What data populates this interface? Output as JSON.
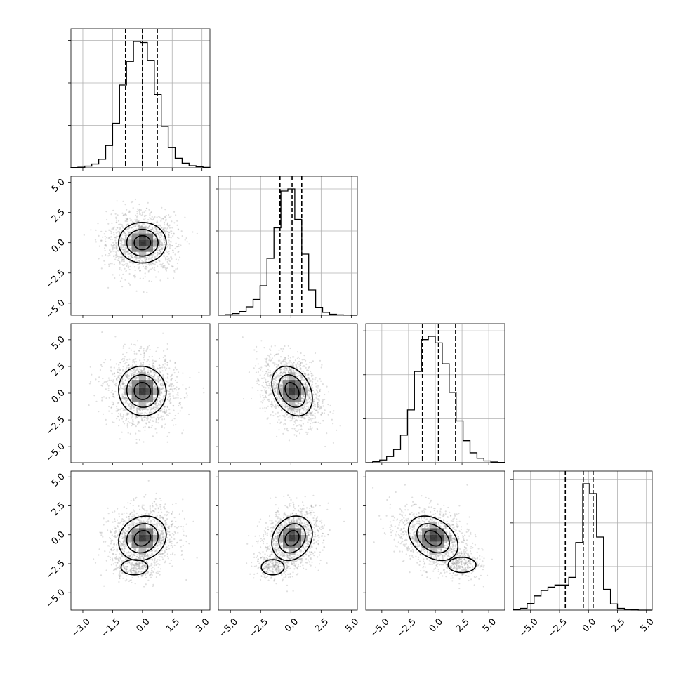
{
  "chart_data": {
    "type": "corner",
    "parameters": 4,
    "axes": [
      {
        "range": [
          -3.6,
          3.4
        ],
        "ticks": [
          -3.0,
          -1.5,
          0.0,
          1.5,
          3.0
        ],
        "tick_labels": [
          "−3.0",
          "−1.5",
          "0.0",
          "1.5",
          "3.0"
        ]
      },
      {
        "range": [
          -6.0,
          5.5
        ],
        "ticks": [
          -5.0,
          -2.5,
          0.0,
          2.5,
          5.0
        ],
        "tick_labels": [
          "−5.0",
          "−2.5",
          "0.0",
          "2.5",
          "5.0"
        ]
      },
      {
        "range": [
          -6.5,
          6.5
        ],
        "ticks": [
          -5.0,
          -2.5,
          0.0,
          2.5,
          5.0
        ],
        "tick_labels": [
          "−5.0",
          "−2.5",
          "0.0",
          "2.5",
          "5.0"
        ]
      },
      {
        "range": [
          -6.5,
          5.5
        ],
        "ticks": [
          -5.0,
          -2.5,
          0.0,
          2.5,
          5.0
        ],
        "tick_labels": [
          "−5.0",
          "−2.5",
          "0.0",
          "2.5",
          "5.0"
        ]
      }
    ],
    "histograms": [
      {
        "bins": [
          -3.6,
          -3.25,
          -2.9,
          -2.55,
          -2.2,
          -1.85,
          -1.5,
          -1.15,
          -0.8,
          -0.45,
          -0.1,
          0.25,
          0.6,
          0.95,
          1.3,
          1.65,
          2.0,
          2.35,
          2.7,
          3.05,
          3.4
        ],
        "counts": [
          1,
          3,
          8,
          18,
          40,
          105,
          210,
          390,
          500,
          595,
          590,
          505,
          345,
          195,
          95,
          45,
          22,
          10,
          5,
          2
        ],
        "quantiles": [
          -0.85,
          0.0,
          0.75
        ]
      },
      {
        "bins": [
          -6.0,
          -5.425,
          -4.85,
          -4.275,
          -3.7,
          -3.125,
          -2.55,
          -1.975,
          -1.4,
          -0.825,
          -0.25,
          0.325,
          0.9,
          1.475,
          2.05,
          2.625,
          3.2,
          3.775,
          4.35,
          4.925,
          5.5
        ],
        "counts": [
          1,
          3,
          8,
          18,
          40,
          75,
          140,
          270,
          415,
          590,
          600,
          455,
          290,
          120,
          38,
          14,
          5,
          2,
          1,
          0
        ],
        "quantiles": [
          -0.9,
          0.1,
          0.9
        ]
      },
      {
        "bins": [
          -6.5,
          -5.85,
          -5.2,
          -4.55,
          -3.9,
          -3.25,
          -2.6,
          -1.95,
          -1.3,
          -0.65,
          0.0,
          0.65,
          1.3,
          1.95,
          2.6,
          3.25,
          3.9,
          4.55,
          5.2,
          5.85,
          6.5
        ],
        "counts": [
          0,
          5,
          12,
          28,
          60,
          125,
          240,
          415,
          560,
          575,
          545,
          450,
          320,
          190,
          100,
          45,
          20,
          8,
          3,
          1
        ],
        "quantiles": [
          -1.2,
          0.3,
          1.9
        ]
      },
      {
        "bins": [
          -6.5,
          -5.9,
          -5.3,
          -4.7,
          -4.1,
          -3.5,
          -2.9,
          -2.3,
          -1.7,
          -1.1,
          -0.5,
          0.1,
          0.7,
          1.3,
          1.9,
          2.5,
          3.1,
          3.7,
          4.3,
          4.9,
          5.5
        ],
        "counts": [
          2,
          8,
          30,
          65,
          90,
          105,
          115,
          115,
          150,
          310,
          580,
          535,
          335,
          95,
          28,
          8,
          3,
          1,
          0,
          0
        ],
        "quantiles": [
          -2.0,
          -0.45,
          0.4
        ]
      }
    ],
    "pairs": [
      {
        "x": 0,
        "y": 1,
        "center": [
          0.0,
          0.0
        ],
        "sigma": [
          0.75,
          1.05
        ],
        "corr": 0.0
      },
      {
        "x": 0,
        "y": 2,
        "center": [
          0.0,
          0.2
        ],
        "sigma": [
          0.75,
          1.45
        ],
        "corr": -0.05
      },
      {
        "x": 1,
        "y": 2,
        "center": [
          0.1,
          0.2
        ],
        "sigma": [
          1.05,
          1.45
        ],
        "corr": -0.3
      },
      {
        "x": 0,
        "y": 3,
        "center": [
          0.0,
          -0.3
        ],
        "sigma": [
          0.75,
          1.2
        ],
        "corr": 0.15,
        "tail": [
          -0.4,
          -2.8
        ]
      },
      {
        "x": 1,
        "y": 3,
        "center": [
          0.1,
          -0.3
        ],
        "sigma": [
          1.05,
          1.2
        ],
        "corr": 0.2,
        "tail": [
          -1.5,
          -2.8
        ]
      },
      {
        "x": 2,
        "y": 3,
        "center": [
          -0.2,
          -0.3
        ],
        "sigma": [
          1.45,
          1.2
        ],
        "corr": -0.35,
        "tail": [
          2.5,
          -2.6
        ]
      }
    ],
    "grid": true
  }
}
